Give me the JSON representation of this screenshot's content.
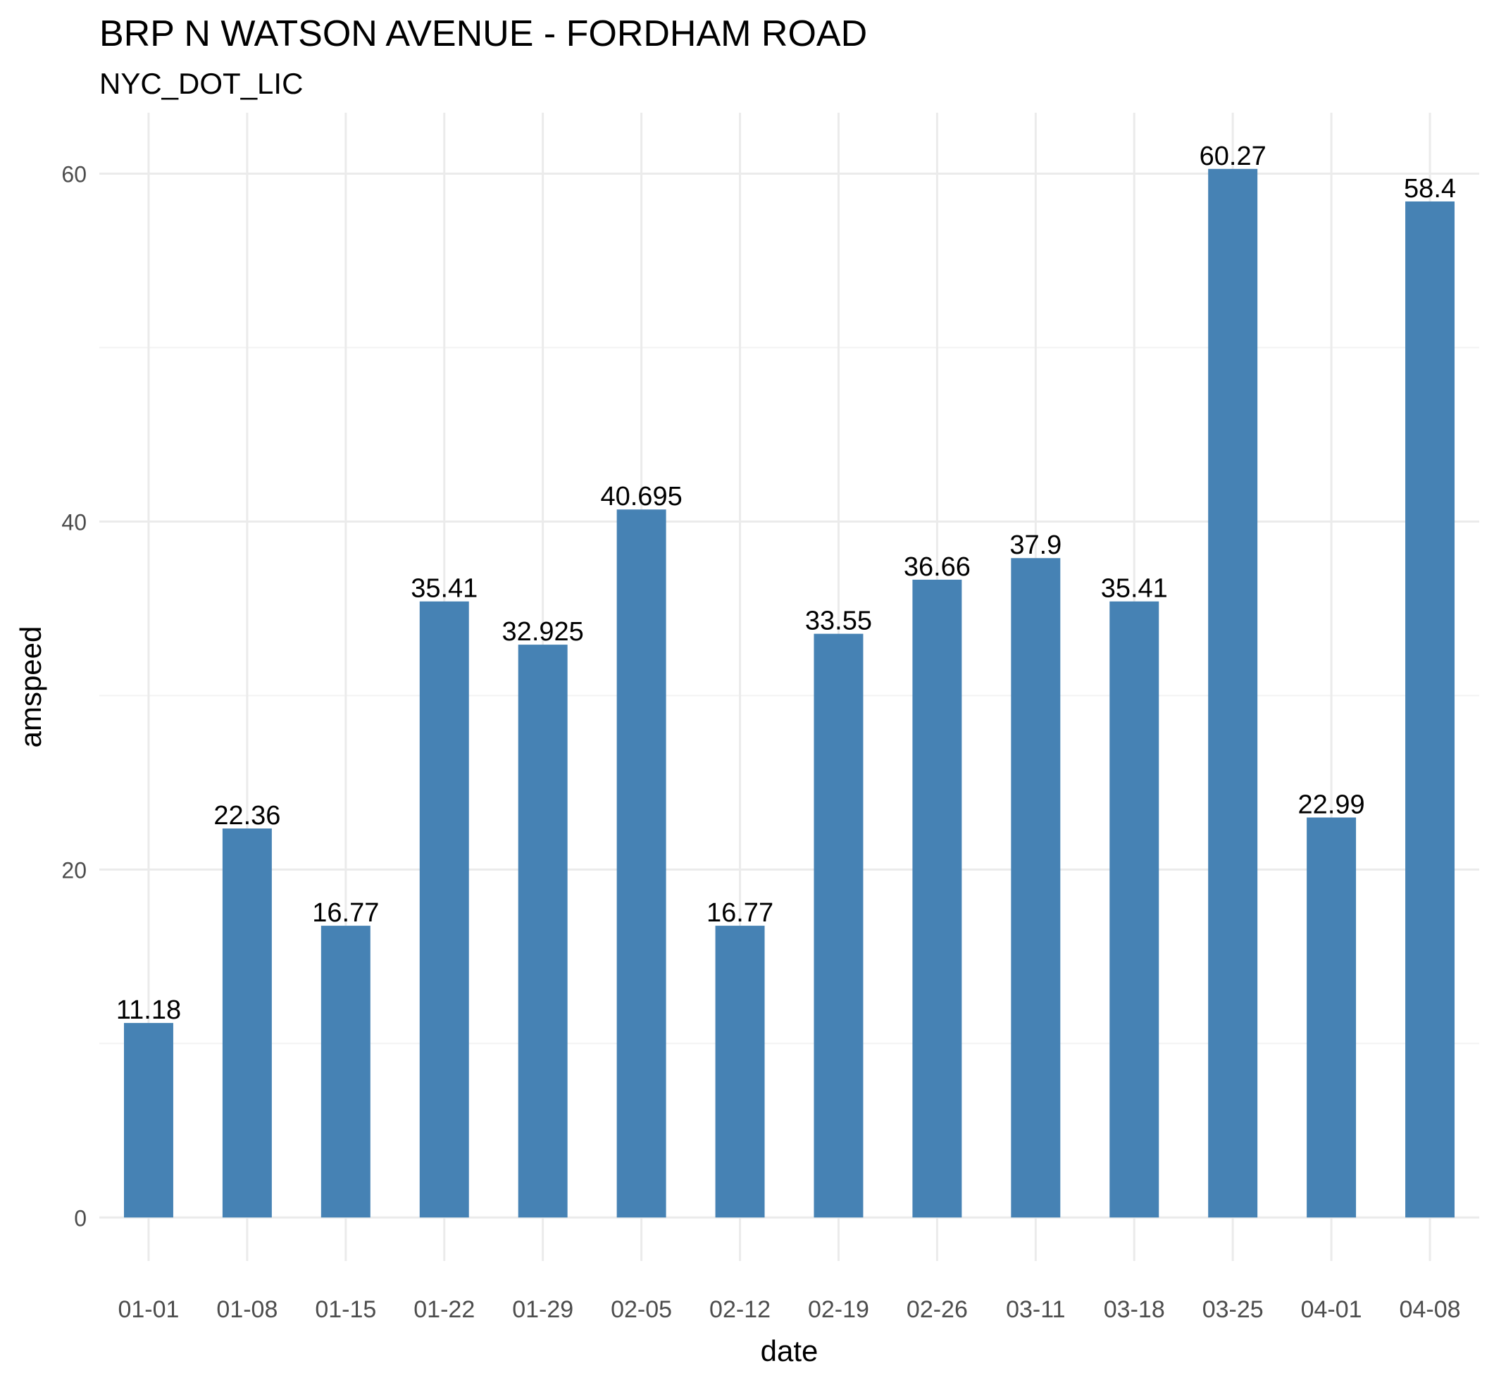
{
  "chart_data": {
    "type": "bar",
    "title": "BRP N WATSON AVENUE - FORDHAM ROAD",
    "subtitle": "NYC_DOT_LIC",
    "xlabel": "date",
    "ylabel": "amspeed",
    "categories": [
      "01-01",
      "01-08",
      "01-15",
      "01-22",
      "01-29",
      "02-05",
      "02-12",
      "02-19",
      "02-26",
      "03-11",
      "03-18",
      "03-25",
      "04-01",
      "04-08"
    ],
    "values": [
      11.18,
      22.36,
      16.77,
      35.41,
      32.925,
      40.695,
      16.77,
      33.55,
      36.66,
      37.9,
      35.41,
      60.27,
      22.99,
      58.4
    ],
    "value_labels": [
      "11.18",
      "22.36",
      "16.77",
      "35.41",
      "32.925",
      "40.695",
      "16.77",
      "33.55",
      "36.66",
      "37.9",
      "35.41",
      "60.27",
      "22.99",
      "58.4"
    ],
    "yticks": [
      0,
      20,
      40,
      60
    ],
    "ylim": [
      -2.5,
      63.5
    ],
    "grid": true,
    "legend": "none",
    "colors": {
      "bar": "#4682B4",
      "grid_major": "#EBEBEB",
      "grid_minor": "#F3F3F3",
      "tick_text": "#4D4D4D",
      "label_text": "#000000"
    }
  }
}
